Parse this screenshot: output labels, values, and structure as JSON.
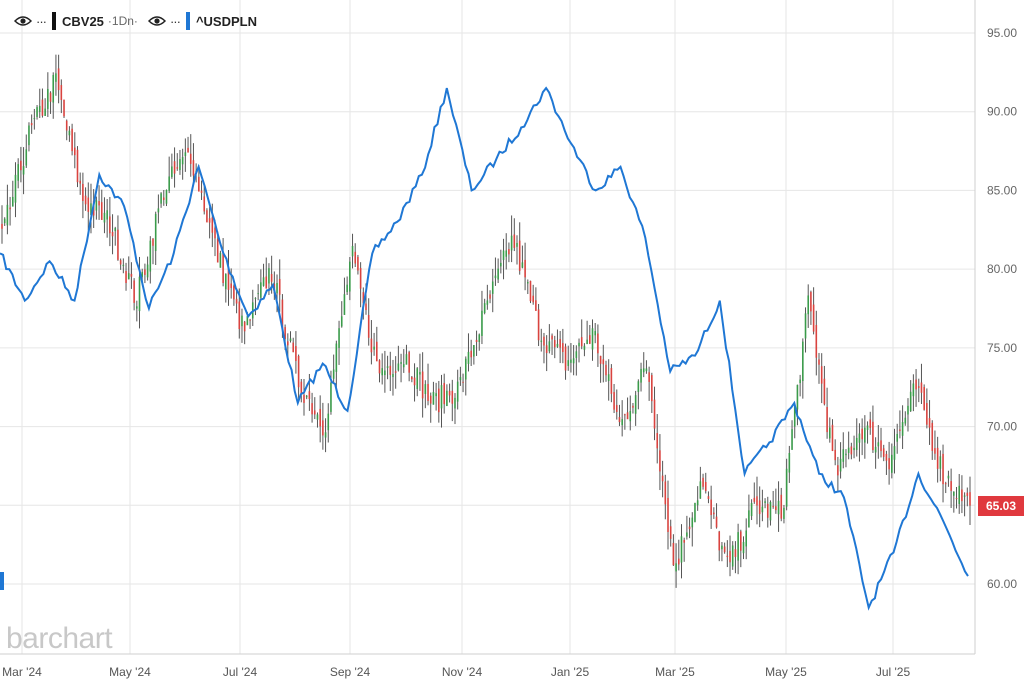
{
  "legend": {
    "series1_symbol": "CBV25",
    "series1_meta": "·1Dn·",
    "series2_symbol": "^USDPLN",
    "dots": "···",
    "series1_color": "#111111",
    "series2_color": "#1f77d4"
  },
  "watermark": "barchart",
  "last_price_label": "65.03",
  "colors": {
    "up": "#3a9b4a",
    "down": "#d9433f",
    "line": "#1f77d4",
    "grid": "#e6e6e6",
    "price_tag": "#e0393e"
  },
  "chart_data": {
    "type": "line",
    "xlabel": "",
    "ylabel": "",
    "ylim": [
      57.0,
      97.0
    ],
    "yticks": [
      "95.00",
      "90.00",
      "85.00",
      "80.00",
      "75.00",
      "70.00",
      "65.00",
      "60.00"
    ],
    "xticks": [
      "Mar '24",
      "May '24",
      "Jul '24",
      "Sep '24",
      "Nov '24",
      "Jan '25",
      "Mar '25",
      "May '25",
      "Jul '25"
    ],
    "grid": true,
    "series": [
      {
        "name": "CBV25",
        "style": "ohlc",
        "points": [
          [
            "Mar '24",
            82.0
          ],
          [
            "Apr '24",
            88.5
          ],
          [
            "Apr '24",
            92.0
          ],
          [
            "May '24",
            84.5
          ],
          [
            "May '24",
            83.0
          ],
          [
            "Jun '24",
            78.0
          ],
          [
            "Jun '24",
            85.0
          ],
          [
            "Jul '24",
            87.5
          ],
          [
            "Jul '24",
            81.0
          ],
          [
            "Aug '24",
            76.0
          ],
          [
            "Aug '24",
            80.0
          ],
          [
            "Sep '24",
            73.0
          ],
          [
            "Sep '24",
            70.0
          ],
          [
            "Oct '24",
            81.0
          ],
          [
            "Oct '24",
            73.5
          ],
          [
            "Nov '24",
            74.5
          ],
          [
            "Nov '24",
            71.5
          ],
          [
            "Dec '24",
            72.5
          ],
          [
            "Dec '24",
            77.5
          ],
          [
            "Jan '25",
            82.0
          ],
          [
            "Jan '25",
            76.0
          ],
          [
            "Feb '25",
            74.0
          ],
          [
            "Feb '25",
            76.0
          ],
          [
            "Mar '25",
            70.0
          ],
          [
            "Mar '25",
            74.0
          ],
          [
            "Apr '25",
            61.0
          ],
          [
            "Apr '25",
            66.5
          ],
          [
            "May '25",
            61.0
          ],
          [
            "May '25",
            65.0
          ],
          [
            "Jun '25",
            64.5
          ],
          [
            "Jun '25",
            78.0
          ],
          [
            "Jul '25",
            67.0
          ],
          [
            "Jul '25",
            70.0
          ],
          [
            "Aug '25",
            68.0
          ],
          [
            "Aug '25",
            72.5
          ],
          [
            "Aug '25",
            67.0
          ],
          [
            "Aug '25",
            65.03
          ]
        ]
      },
      {
        "name": "^USDPLN",
        "style": "line",
        "points": [
          [
            "Mar '24",
            81.0
          ],
          [
            "Mar '24",
            78.0
          ],
          [
            "Apr '24",
            80.5
          ],
          [
            "Apr '24",
            78.0
          ],
          [
            "May '24",
            86.0
          ],
          [
            "May '24",
            84.0
          ],
          [
            "Jun '24",
            77.5
          ],
          [
            "Jun '24",
            81.0
          ],
          [
            "Jul '24",
            86.5
          ],
          [
            "Jul '24",
            81.0
          ],
          [
            "Aug '24",
            77.0
          ],
          [
            "Aug '24",
            79.0
          ],
          [
            "Sep '24",
            71.5
          ],
          [
            "Sep '24",
            74.0
          ],
          [
            "Oct '24",
            71.0
          ],
          [
            "Oct '24",
            81.0
          ],
          [
            "Oct '24",
            83.0
          ],
          [
            "Nov '24",
            86.0
          ],
          [
            "Nov '24",
            91.5
          ],
          [
            "Dec '24",
            85.0
          ],
          [
            "Dec '24",
            87.0
          ],
          [
            "Dec '24",
            89.0
          ],
          [
            "Jan '25",
            91.5
          ],
          [
            "Jan '25",
            88.0
          ],
          [
            "Feb '25",
            85.0
          ],
          [
            "Feb '25",
            86.5
          ],
          [
            "Mar '25",
            82.0
          ],
          [
            "Mar '25",
            73.5
          ],
          [
            "Mar '25",
            74.5
          ],
          [
            "Apr '25",
            78.0
          ],
          [
            "Apr '25",
            67.0
          ],
          [
            "May '25",
            69.0
          ],
          [
            "May '25",
            71.5
          ],
          [
            "Jun '25",
            67.0
          ],
          [
            "Jun '25",
            65.5
          ],
          [
            "Jul '25",
            58.5
          ],
          [
            "Jul '25",
            62.0
          ],
          [
            "Aug '25",
            67.0
          ],
          [
            "Aug '25",
            64.0
          ],
          [
            "Aug '25",
            60.5
          ]
        ]
      }
    ]
  }
}
